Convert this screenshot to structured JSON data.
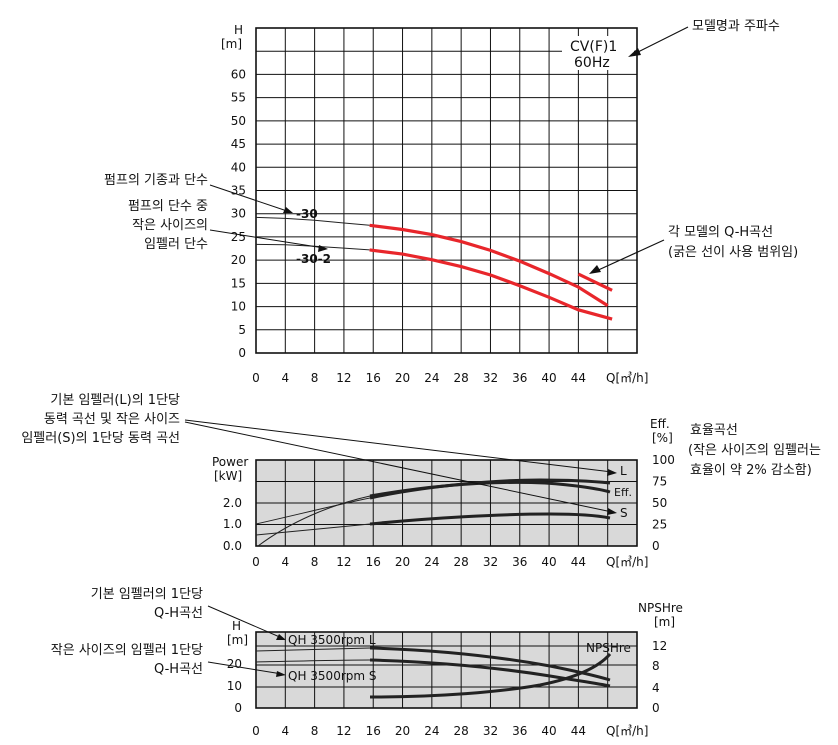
{
  "chart_data": [
    {
      "type": "line",
      "id": "qh",
      "title": "CV(F)1",
      "subtitle": "60Hz",
      "ylabel": "H",
      "yunit": "[m]",
      "xlabel": "Q[㎥/h]",
      "xlim": [
        0,
        52
      ],
      "ylim": [
        0,
        70
      ],
      "x_ticks": [
        "0",
        "4",
        "8",
        "12",
        "16",
        "20",
        "24",
        "28",
        "32",
        "36",
        "40",
        "44"
      ],
      "y_ticks": [
        "0",
        "5",
        "10",
        "15",
        "20",
        "25",
        "30",
        "35",
        "40",
        "45",
        "50",
        "55",
        "60"
      ],
      "grid": true,
      "series": [
        {
          "name": "-30",
          "color": "#e8262b",
          "thin": [
            [
              0,
              29.2
            ],
            [
              4,
              29.0
            ],
            [
              8,
              28.6
            ],
            [
              12,
              28.0
            ],
            [
              15.5,
              27.5
            ]
          ],
          "bold": [
            [
              15.5,
              27.5
            ],
            [
              20,
              26.6
            ],
            [
              24,
              25.5
            ],
            [
              28,
              24.0
            ],
            [
              32,
              22.1
            ],
            [
              36,
              19.8
            ],
            [
              40,
              17.1
            ],
            [
              44,
              14.2
            ],
            [
              48,
              10.2
            ],
            [
              48.5,
              9.5
            ],
            [
              48.6,
              13.5
            ]
          ]
        },
        {
          "name": "-30-2",
          "color": "#e8262b",
          "thin": [
            [
              0,
              23.4
            ],
            [
              4,
              23.3
            ],
            [
              8,
              23.0
            ],
            [
              12,
              22.6
            ],
            [
              15.5,
              22.2
            ]
          ],
          "bold": [
            [
              15.5,
              22.2
            ],
            [
              20,
              21.3
            ],
            [
              24,
              20.1
            ],
            [
              28,
              18.6
            ],
            [
              32,
              16.8
            ],
            [
              36,
              14.5
            ],
            [
              40,
              12.0
            ],
            [
              44,
              9.3
            ],
            [
              48.6,
              7.3
            ]
          ]
        }
      ]
    },
    {
      "type": "line",
      "id": "power",
      "ylabel": "Power",
      "yunit": "[kW]",
      "ylabel_right": "Eff.",
      "yunit_right": "[%]",
      "xlabel": "Q[㎥/h]",
      "x_ticks": [
        "0",
        "4",
        "8",
        "12",
        "16",
        "20",
        "24",
        "28",
        "32",
        "36",
        "40",
        "44"
      ],
      "y_ticks": [
        "0.0",
        "1.0",
        "2.0"
      ],
      "y_ticks_right": [
        "0",
        "25",
        "50",
        "75",
        "100"
      ],
      "series_labels": [
        "L",
        "Eff.",
        "S"
      ]
    },
    {
      "type": "line",
      "id": "npsh",
      "ylabel": "H",
      "yunit": "[m]",
      "ylabel_right": "NPSHre",
      "yunit_right": "[m]",
      "xlabel": "Q[㎥/h]",
      "x_ticks": [
        "0",
        "4",
        "8",
        "12",
        "16",
        "20",
        "24",
        "28",
        "32",
        "36",
        "40",
        "44"
      ],
      "y_ticks": [
        "0",
        "10",
        "20"
      ],
      "y_ticks_right": [
        "0",
        "4",
        "8",
        "12"
      ],
      "curve_labels": [
        "QH 3500rpm L",
        "QH 3500rpm S",
        "NPSHre"
      ]
    }
  ],
  "annotations": {
    "model_freq": "모델명과 주파수",
    "stage_label": "펌프의 기종과 단수",
    "small_impeller_1": "펌프의 단수 중",
    "small_impeller_2": "작은 사이즈의",
    "small_impeller_3": "임펠러 단수",
    "qh_curve_1": "각 모델의 Q-H곡선",
    "qh_curve_2": "(굵은 선이 사용 범위임)",
    "power_1": "기본 임펠러(L)의 1단당",
    "power_2": "동력 곡선 및 작은 사이즈",
    "power_3": "임펠러(S)의 1단당 동력 곡선",
    "eff_1": "효율곡선",
    "eff_2": "(작은 사이즈의 임펠러는",
    "eff_3": "효율이 약 2% 감소함)",
    "base_qh_1": "기본 임펠러의 1단당",
    "base_qh_2": "Q-H곡선",
    "small_qh_1": "작은 사이즈의 임펠러 1단당",
    "small_qh_2": "Q-H곡선"
  }
}
